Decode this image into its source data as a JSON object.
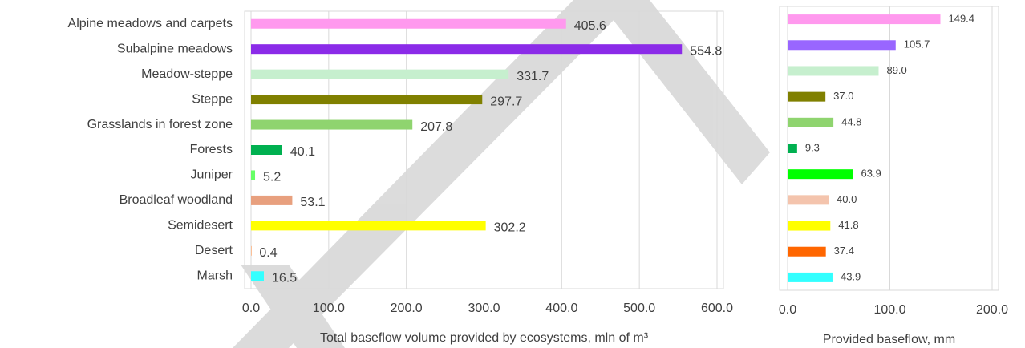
{
  "chart_data": [
    {
      "type": "bar",
      "horizontal": true,
      "categories": [
        "Alpine meadows and carpets",
        "Subalpine meadows",
        "Meadow-steppe",
        "Steppe",
        "Grasslands in forest zone",
        "Forests",
        "Juniper",
        "Broadleaf woodland",
        "Semidesert",
        "Desert",
        "Marsh"
      ],
      "values": [
        405.6,
        554.8,
        331.7,
        297.7,
        207.8,
        40.1,
        5.2,
        53.1,
        302.2,
        0.4,
        16.5
      ],
      "colors": [
        "#ff99ee",
        "#8b2be8",
        "#c6efce",
        "#808000",
        "#8fd46f",
        "#00b050",
        "#66ff66",
        "#e8a07e",
        "#ffff00",
        "#ff6600",
        "#33ffff"
      ],
      "xlabel": "Total baseflow volume provided by ecosystems, mln of m³",
      "xlim": [
        0,
        600
      ],
      "xticks": [
        {
          "value": 0,
          "label": "0.0"
        },
        {
          "value": 100,
          "label": "100.0"
        },
        {
          "value": 200,
          "label": "200.0"
        },
        {
          "value": 300,
          "label": "300.0"
        },
        {
          "value": 400,
          "label": "400.0"
        },
        {
          "value": 500,
          "label": "500.0"
        },
        {
          "value": 600,
          "label": "600.0"
        }
      ],
      "grid": true
    },
    {
      "type": "bar",
      "horizontal": true,
      "values": [
        149.4,
        105.7,
        89.0,
        37.0,
        44.8,
        9.3,
        63.9,
        40.0,
        41.8,
        37.4,
        43.9
      ],
      "value_labels": [
        "149.4",
        "105.7",
        "89.0",
        "37.0",
        "44.8",
        "9.3",
        "63.9",
        "40.0",
        "41.8",
        "37.4",
        "43.9"
      ],
      "colors": [
        "#ff99ee",
        "#9966ff",
        "#c6efce",
        "#808000",
        "#8fd46f",
        "#00b050",
        "#00ff00",
        "#f4c4ad",
        "#ffff00",
        "#ff6600",
        "#33ffff"
      ],
      "xlabel": "Provided baseflow, mm",
      "xlim": [
        0,
        200
      ],
      "xticks": [
        {
          "value": 0,
          "label": "0.0"
        },
        {
          "value": 100,
          "label": "100.0"
        },
        {
          "value": 200,
          "label": "200.0"
        }
      ],
      "grid": true
    }
  ]
}
